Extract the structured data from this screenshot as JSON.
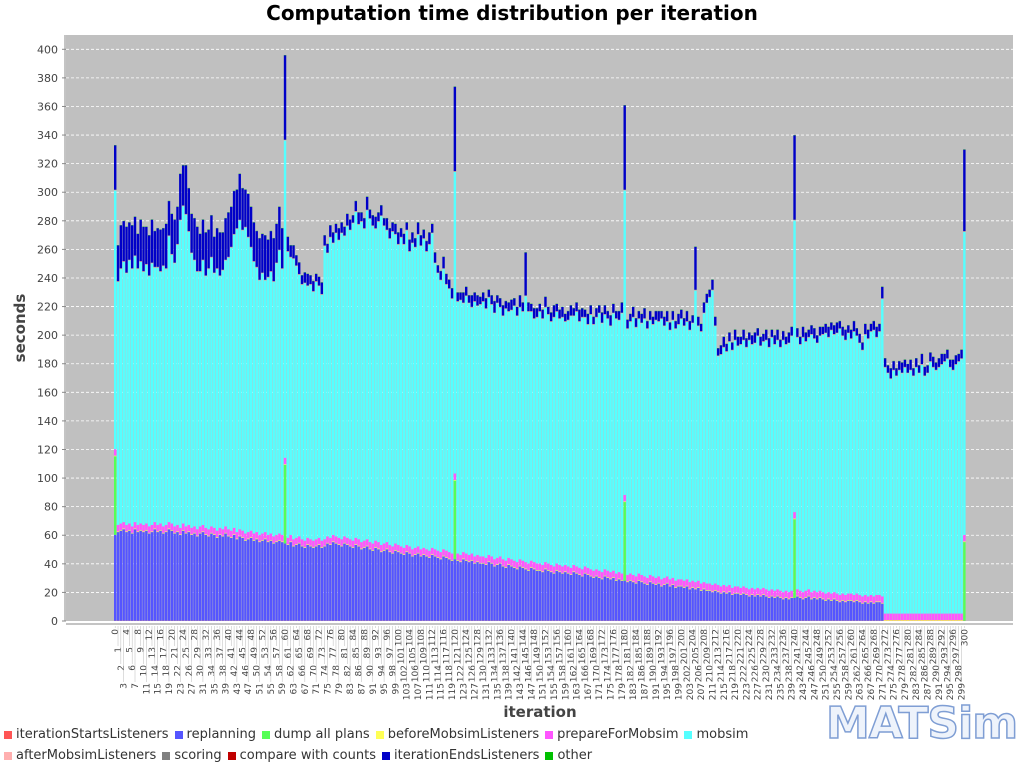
{
  "chart_data": {
    "type": "bar",
    "stacked": true,
    "title": "Computation time distribution per iteration",
    "xlabel": "iteration",
    "ylabel": "seconds",
    "ylim": [
      0,
      410
    ],
    "yticks": [
      0,
      20,
      40,
      60,
      80,
      100,
      120,
      140,
      160,
      180,
      200,
      220,
      240,
      260,
      280,
      300,
      320,
      340,
      360,
      380,
      400
    ],
    "iterations": {
      "start": 0,
      "end": 300
    },
    "grid": true,
    "legend_position": "bottom",
    "logo_text": "MATSim",
    "series": [
      {
        "name": "iterationStartsListeners",
        "color": "#ff5555",
        "const": 0.2
      },
      {
        "name": "replanning",
        "color": "#5555ff",
        "values": [
          60,
          62,
          63,
          64,
          62,
          63,
          61,
          64,
          62,
          63,
          62,
          63,
          61,
          62,
          64,
          62,
          63,
          61,
          62,
          64,
          63,
          61,
          62,
          60,
          63,
          61,
          62,
          60,
          61,
          59,
          61,
          62,
          60,
          59,
          61,
          60,
          58,
          60,
          59,
          61,
          59,
          58,
          60,
          57,
          59,
          58,
          56,
          57,
          58,
          56,
          57,
          55,
          56,
          57,
          55,
          56,
          54,
          55,
          56,
          55,
          54,
          53,
          55,
          52,
          53,
          54,
          52,
          51,
          53,
          52,
          51,
          52,
          53,
          51,
          52,
          54,
          53,
          55,
          54,
          53,
          52,
          54,
          53,
          52,
          51,
          53,
          52,
          50,
          51,
          52,
          50,
          49,
          51,
          50,
          48,
          49,
          50,
          48,
          47,
          49,
          48,
          47,
          46,
          48,
          47,
          45,
          46,
          47,
          45,
          46,
          45,
          44,
          46,
          45,
          44,
          43,
          45,
          44,
          43,
          42,
          43,
          42,
          41,
          43,
          42,
          41,
          42,
          40,
          41,
          40,
          40,
          39,
          41,
          40,
          38,
          39,
          40,
          38,
          37,
          39,
          38,
          37,
          36,
          38,
          37,
          36,
          35,
          37,
          36,
          35,
          35,
          34,
          36,
          35,
          34,
          33,
          35,
          34,
          33,
          34,
          33,
          32,
          34,
          33,
          32,
          31,
          33,
          32,
          31,
          30,
          31,
          30,
          29,
          31,
          30,
          29,
          30,
          28,
          29,
          28,
          28,
          27,
          28,
          27,
          26,
          28,
          27,
          26,
          25,
          27,
          26,
          25,
          26,
          24,
          25,
          26,
          24,
          25,
          23,
          24,
          24,
          23,
          24,
          22,
          23,
          22,
          23,
          21,
          22,
          21,
          21,
          20,
          21,
          20,
          19,
          20,
          19,
          20,
          18,
          19,
          19,
          18,
          19,
          18,
          17,
          18,
          17,
          18,
          17,
          18,
          17,
          16,
          17,
          16,
          17,
          16,
          15,
          16,
          15,
          16,
          16,
          17,
          16,
          15,
          16,
          17,
          15,
          16,
          15,
          16,
          15,
          14,
          15,
          14,
          15,
          14,
          13,
          14,
          13,
          14,
          14,
          13,
          14,
          13,
          12,
          13,
          12,
          13,
          12,
          13,
          13,
          12,
          0,
          0,
          0,
          0,
          0,
          0,
          0,
          0,
          0,
          0,
          0,
          0,
          0,
          0,
          0,
          0,
          0,
          0,
          0,
          0,
          0,
          0,
          0,
          0,
          0,
          0,
          0,
          0,
          0
        ]
      },
      {
        "name": "dump all plans",
        "color": "#55ff55",
        "sparse": {
          "iterations": [
            0,
            60,
            120,
            180,
            240,
            300
          ],
          "values": [
            55,
            55,
            55,
            55,
            55,
            55
          ]
        }
      },
      {
        "name": "beforeMobsimListeners",
        "color": "#ffff55",
        "const": 0.5
      },
      {
        "name": "prepareForMobsim",
        "color": "#ff55ff",
        "const": 4.5
      },
      {
        "name": "mobsim",
        "color": "#55ffff",
        "values": [
          181,
          170,
          178,
          182,
          176,
          184,
          180,
          186,
          179,
          183,
          177,
          181,
          175,
          183,
          178,
          180,
          176,
          182,
          179,
          200,
          188,
          184,
          196,
          215,
          222,
          218,
          205,
          192,
          186,
          180,
          178,
          185,
          176,
          182,
          188,
          178,
          183,
          176,
          181,
          186,
          190,
          198,
          205,
          212,
          216,
          210,
          214,
          206,
          198,
          190,
          185,
          178,
          182,
          176,
          180,
          183,
          178,
          190,
          198,
          186,
          222,
          200,
          194,
          196,
          190,
          183,
          178,
          180,
          176,
          178,
          174,
          180,
          176,
          172,
          205,
          198,
          210,
          204,
          212,
          208,
          214,
          210,
          218,
          216,
          222,
          228,
          220,
          224,
          218,
          230,
          226,
          222,
          218,
          224,
          230,
          222,
          218,
          214,
          220,
          216,
          210,
          216,
          212,
          220,
          206,
          214,
          210,
          218,
          212,
          216,
          208,
          214,
          220,
          200,
          194,
          190,
          196,
          186,
          184,
          178,
          211,
          176,
          178,
          174,
          180,
          176,
          172,
          178,
          174,
          176,
          178,
          174,
          180,
          176,
          172,
          178,
          174,
          170,
          176,
          172,
          174,
          178,
          172,
          176,
          174,
          186,
          176,
          174,
          170,
          172,
          176,
          172,
          178,
          174,
          170,
          174,
          176,
          172,
          174,
          170,
          172,
          176,
          174,
          178,
          172,
          176,
          174,
          170,
          178,
          172,
          176,
          180,
          174,
          178,
          176,
          172,
          180,
          178,
          176,
          182,
          213,
          172,
          176,
          180,
          174,
          178,
          176,
          180,
          174,
          178,
          176,
          180,
          178,
          182,
          176,
          178,
          174,
          180,
          176,
          178,
          182,
          178,
          180,
          176,
          180,
          204,
          178,
          176,
          188,
          196,
          200,
          206,
          180,
          160,
          162,
          166,
          164,
          170,
          166,
          172,
          168,
          170,
          172,
          168,
          174,
          170,
          172,
          176,
          170,
          172,
          174,
          170,
          176,
          172,
          174,
          170,
          176,
          172,
          174,
          178,
          204,
          176,
          172,
          178,
          174,
          176,
          180,
          176,
          174,
          178,
          180,
          182,
          178,
          184,
          180,
          182,
          186,
          180,
          178,
          182,
          178,
          184,
          180,
          176,
          172,
          182,
          180,
          184,
          186,
          180,
          184,
          208,
          172,
          168,
          164,
          170,
          166,
          170,
          168,
          172,
          168,
          170,
          166,
          172,
          168,
          174,
          166,
          168,
          176,
          172,
          170,
          172,
          174,
          176,
          178,
          172,
          170,
          174,
          176,
          178,
          212
        ]
      },
      {
        "name": "afterMobsimListeners",
        "color": "#ffafaf",
        "const": 0.3
      },
      {
        "name": "scoring",
        "color": "#808080",
        "const": 0.3
      },
      {
        "name": "compare with counts",
        "color": "#c00000",
        "const": 0
      },
      {
        "name": "iterationEndsListeners",
        "color": "#0000c8",
        "values": [
          31,
          25,
          30,
          28,
          32,
          26,
          30,
          27,
          24,
          29,
          31,
          26,
          28,
          30,
          25,
          27,
          29,
          26,
          31,
          24,
          28,
          30,
          26,
          32,
          28,
          34,
          30,
          27,
          29,
          31,
          26,
          28,
          30,
          27,
          29,
          25,
          28,
          30,
          26,
          29,
          31,
          28,
          30,
          27,
          32,
          29,
          26,
          30,
          28,
          27,
          25,
          29,
          27,
          31,
          26,
          28,
          30,
          27,
          30,
          28,
          59,
          10,
          8,
          9,
          7,
          8,
          6,
          7,
          8,
          6,
          7,
          5,
          6,
          8,
          7,
          6,
          8,
          7,
          6,
          8,
          7,
          6,
          8,
          7,
          5,
          7,
          8,
          6,
          7,
          9,
          6,
          7,
          8,
          6,
          7,
          5,
          8,
          7,
          6,
          7,
          8,
          6,
          7,
          5,
          8,
          7,
          6,
          8,
          7,
          6,
          7,
          8,
          6,
          7,
          5,
          6,
          8,
          7,
          6,
          7,
          59,
          6,
          5,
          7,
          6,
          5,
          8,
          6,
          7,
          5,
          6,
          7,
          5,
          6,
          8,
          5,
          6,
          7,
          5,
          6,
          7,
          5,
          6,
          8,
          6,
          30,
          6,
          5,
          7,
          6,
          5,
          6,
          7,
          5,
          6,
          8,
          5,
          6,
          7,
          5,
          6,
          7,
          5,
          6,
          8,
          6,
          5,
          7,
          6,
          5,
          6,
          5,
          7,
          6,
          5,
          7,
          6,
          5,
          6,
          7,
          59,
          6,
          5,
          7,
          6,
          5,
          6,
          7,
          5,
          6,
          5,
          6,
          7,
          5,
          6,
          7,
          5,
          6,
          5,
          7,
          6,
          5,
          7,
          6,
          5,
          30,
          6,
          5,
          7,
          6,
          5,
          7,
          6,
          5,
          6,
          7,
          5,
          6,
          5,
          7,
          6,
          5,
          7,
          6,
          5,
          6,
          7,
          5,
          6,
          5,
          7,
          6,
          5,
          6,
          7,
          5,
          6,
          5,
          7,
          6,
          59,
          6,
          5,
          7,
          6,
          5,
          6,
          7,
          5,
          6,
          5,
          6,
          7,
          5,
          6,
          7,
          5,
          6,
          7,
          5,
          6,
          7,
          5,
          6,
          5,
          7,
          6,
          5,
          6,
          7,
          5,
          8,
          6,
          5,
          7,
          6,
          5,
          6,
          7,
          5,
          6,
          7,
          5,
          6,
          5,
          7,
          6,
          5,
          6,
          7,
          5,
          6,
          7,
          5,
          6,
          5,
          7,
          6,
          5,
          6,
          57
        ]
      },
      {
        "name": "other",
        "color": "#00c000",
        "const": 0.2
      }
    ]
  }
}
